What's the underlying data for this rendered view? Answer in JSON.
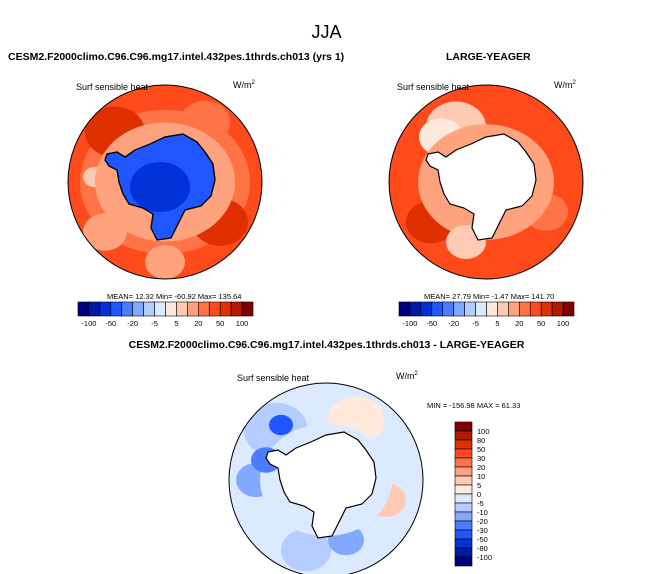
{
  "title": "JJA",
  "panels": [
    {
      "heading": "CESM2.F2000climo.C96.C96.mg17.intel.432pes.1thrds.ch013 (yrs 1)",
      "variable": "Surf sensible heat",
      "units": "W/m",
      "units_sup": "2",
      "stats": "MEAN=  12.32  Min= -60.92  Max= 135.64"
    },
    {
      "heading": "LARGE-YEAGER",
      "variable": "Surf sensible heat",
      "units": "W/m",
      "units_sup": "2",
      "stats": "MEAN=  27.79  Min=  -1.47  Max= 141.70"
    },
    {
      "heading": "CESM2.F2000climo.C96.C96.mg17.intel.432pes.1thrds.ch013 - LARGE-YEAGER",
      "variable": "Surf sensible heat",
      "units": "W/m",
      "units_sup": "2",
      "stats": "MIN = -156.98 MAX =  61.33"
    }
  ],
  "chart_data": {
    "type": "heatmap",
    "projection": "south polar stereographic",
    "colorbar": {
      "levels": [
        -100,
        -80,
        -50,
        -30,
        -20,
        -10,
        -5,
        0,
        5,
        10,
        20,
        30,
        50,
        80,
        100
      ],
      "horizontal_labels": [
        "-100",
        "-50",
        "-20",
        "-5",
        "5",
        "20",
        "50",
        "100"
      ],
      "vertical_labels": [
        "100",
        "80",
        "50",
        "30",
        "20",
        "10",
        "5",
        "0",
        "-5",
        "-10",
        "-20",
        "-30",
        "-50",
        "-80",
        "-100"
      ],
      "colors": [
        "#00007f",
        "#0018a8",
        "#0032d8",
        "#1f56ff",
        "#4a7cff",
        "#82a8ff",
        "#b4ccff",
        "#dbeaff",
        "#ffe8dc",
        "#ffcab4",
        "#ffa27e",
        "#ff7447",
        "#ff4a1c",
        "#e03000",
        "#b31a00",
        "#800000"
      ]
    }
  }
}
